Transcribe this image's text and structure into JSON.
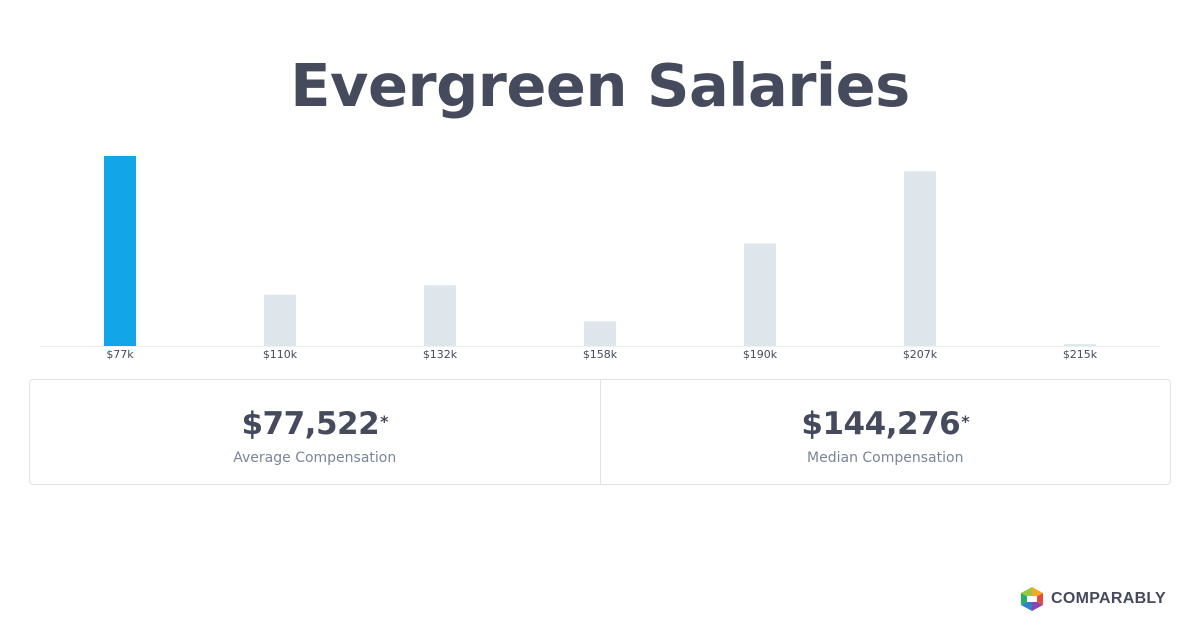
{
  "title": "Evergreen Salaries",
  "colors": {
    "highlight_bar": "#12a5e8",
    "default_bar": "#dee6ec",
    "text": "#454b5c",
    "muted_text": "#7a8599"
  },
  "chart_data": {
    "type": "bar",
    "categories": [
      "$77k",
      "$110k",
      "$132k",
      "$158k",
      "$190k",
      "$207k",
      "$215k"
    ],
    "values": [
      100,
      27,
      32,
      13,
      54,
      92,
      1
    ],
    "highlight_index": 0,
    "title": "",
    "xlabel": "",
    "ylabel": "",
    "ylim": [
      0,
      100
    ],
    "grid": false
  },
  "stats": {
    "average": {
      "value": "$77,522",
      "mark": "*",
      "label": "Average Compensation"
    },
    "median": {
      "value": "$144,276",
      "mark": "*",
      "label": "Median Compensation"
    }
  },
  "brand": {
    "logo_text": "COMPARABLY",
    "icon": "comparably-logo-icon"
  }
}
